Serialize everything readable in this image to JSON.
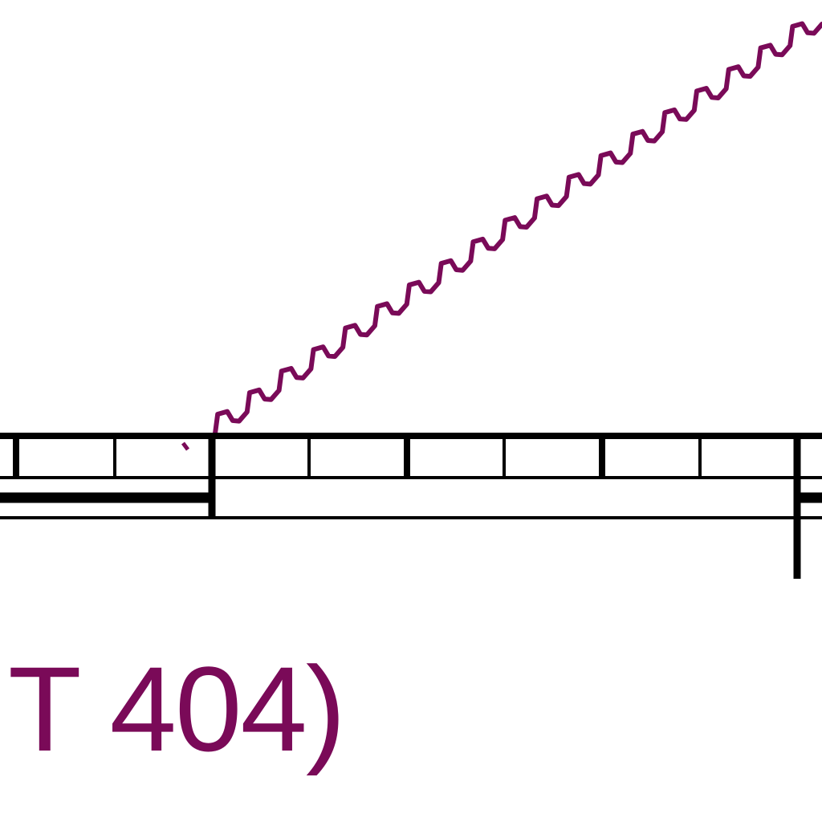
{
  "diagram": {
    "label": "T 404)",
    "colors": {
      "line": "#000000",
      "accent": "#7a0a58",
      "background": "#ffffff"
    },
    "icons": {
      "wavy_line": "zigzag-wave-line",
      "ruler": "scale-bar"
    }
  }
}
